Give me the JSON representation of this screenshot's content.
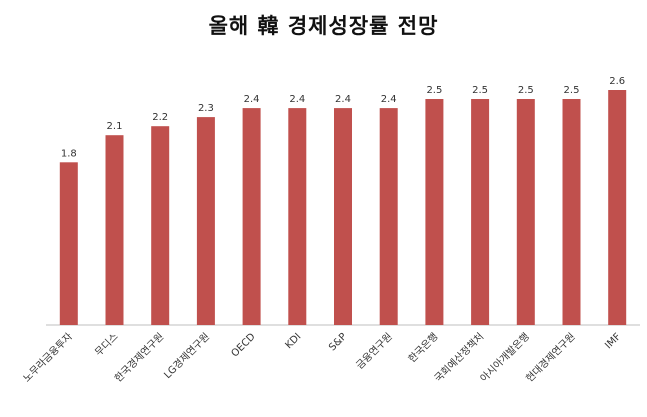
{
  "chart_data": {
    "type": "bar",
    "title": "올해 韓 경제성장률 전망",
    "categories": [
      "노무라금융투자",
      "무디스",
      "한국경제연구원",
      "LG경제연구원",
      "OECD",
      "KDI",
      "S&P",
      "금융연구원",
      "한국은행",
      "국회예산정책처",
      "아시아개발은행",
      "현대경제연구원",
      "IMF"
    ],
    "values": [
      1.8,
      2.1,
      2.2,
      2.3,
      2.4,
      2.4,
      2.4,
      2.4,
      2.5,
      2.5,
      2.5,
      2.5,
      2.6
    ],
    "value_labels": [
      "1.8",
      "2.1",
      "2.2",
      "2.3",
      "2.4",
      "2.4",
      "2.4",
      "2.4",
      "2.5",
      "2.5",
      "2.5",
      "2.5",
      "2.6"
    ],
    "xlabel": "",
    "ylabel": "",
    "ylim": [
      0,
      2.6
    ],
    "grid": false,
    "legend": "none",
    "bar_color": "#c0504d",
    "axis_color": "#bfbfbf",
    "label_color": "#333333"
  }
}
